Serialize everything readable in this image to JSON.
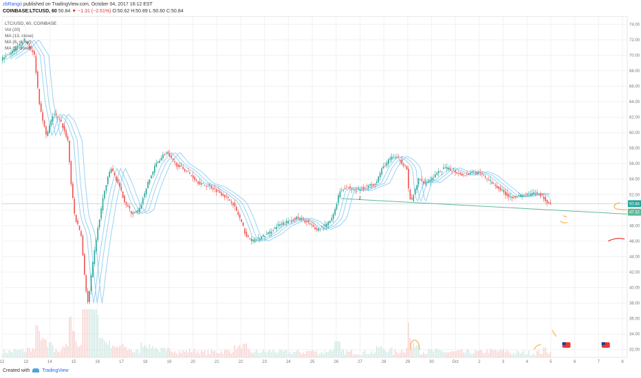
{
  "header": {
    "line1": {
      "user": "zbRango",
      "rest": "published on TradingView.com, October 04, 2017 16:12 EST"
    },
    "line2": {
      "symbol": "COINBASE:LTCUSD, 60",
      "last": "50.84",
      "change": "▼ −1.31 (−2.51%)",
      "ohlc": "O:50.62 H:50.89 L:50.60 C:50.84"
    }
  },
  "legend_items": [
    "LTC/USD, 60, COINBASE",
    "Vol (20)",
    "MA (13, close)",
    "MA (8, close)",
    "MA (5, close)"
  ],
  "footer": {
    "created": "Created with",
    "brand": "TradingView"
  },
  "price_labels": {
    "last": "50.84",
    "line": "47.32"
  },
  "annotation": "2",
  "colors": {
    "up": "#26a69a",
    "down": "#ef5350",
    "ma": "#8ecdf0",
    "trend": "#5fb89a",
    "drawing": "#f5a623",
    "drawing_red": "#e53935",
    "ohlc_red": "#d32f2f"
  },
  "icons": [
    "tradingview-logo-icon",
    "us-flag-event-icon"
  ],
  "chart_data": {
    "type": "candlestick",
    "y_range": [
      31,
      75
    ],
    "y_ticks": [
      "32.00",
      "34.00",
      "36.00",
      "38.00",
      "40.00",
      "42.00",
      "44.00",
      "46.00",
      "48.00",
      "50.00",
      "52.00",
      "54.00",
      "56.00",
      "58.00",
      "60.00",
      "62.00",
      "64.00",
      "66.00",
      "68.00",
      "70.00",
      "72.00",
      "74.00"
    ],
    "x_ticks": [
      "12",
      "13",
      "14",
      "15",
      "16",
      "17",
      "18",
      "19",
      "20",
      "21",
      "22",
      "23",
      "24",
      "25",
      "26",
      "27",
      "28",
      "29",
      "30",
      "Oct",
      "2",
      "3",
      "4",
      "5",
      "6",
      "7",
      "8"
    ],
    "x_range_days": [
      12,
      38.2
    ],
    "price_path": [
      [
        12.0,
        69.5
      ],
      [
        12.5,
        70.5
      ],
      [
        13.0,
        72.0
      ],
      [
        13.4,
        70.0
      ],
      [
        13.6,
        64.0
      ],
      [
        13.9,
        59.5
      ],
      [
        14.2,
        62.5
      ],
      [
        14.5,
        61.5
      ],
      [
        14.8,
        59.0
      ],
      [
        14.95,
        53.0
      ],
      [
        15.1,
        49.0
      ],
      [
        15.35,
        47.0
      ],
      [
        15.55,
        40.0
      ],
      [
        15.65,
        37.8
      ],
      [
        15.8,
        42.0
      ],
      [
        16.0,
        46.5
      ],
      [
        16.3,
        52.0
      ],
      [
        16.6,
        55.5
      ],
      [
        16.9,
        53.5
      ],
      [
        17.2,
        51.0
      ],
      [
        17.5,
        49.5
      ],
      [
        17.8,
        50.0
      ],
      [
        18.1,
        53.0
      ],
      [
        18.5,
        56.0
      ],
      [
        18.9,
        57.5
      ],
      [
        19.3,
        56.0
      ],
      [
        19.8,
        55.0
      ],
      [
        20.3,
        53.5
      ],
      [
        20.8,
        53.0
      ],
      [
        21.3,
        52.0
      ],
      [
        21.7,
        51.0
      ],
      [
        22.0,
        49.0
      ],
      [
        22.3,
        46.5
      ],
      [
        22.6,
        46.0
      ],
      [
        22.9,
        46.5
      ],
      [
        23.2,
        47.0
      ],
      [
        23.6,
        48.0
      ],
      [
        24.0,
        48.5
      ],
      [
        24.4,
        49.0
      ],
      [
        24.8,
        48.5
      ],
      [
        25.2,
        47.5
      ],
      [
        25.6,
        48.0
      ],
      [
        25.9,
        49.0
      ],
      [
        26.2,
        52.5
      ],
      [
        26.5,
        53.0
      ],
      [
        26.9,
        52.5
      ],
      [
        27.3,
        53.0
      ],
      [
        27.7,
        53.5
      ],
      [
        28.0,
        55.5
      ],
      [
        28.4,
        57.0
      ],
      [
        28.7,
        56.5
      ],
      [
        29.0,
        55.5
      ],
      [
        29.1,
        52.0
      ],
      [
        29.2,
        51.0
      ],
      [
        29.5,
        54.0
      ],
      [
        29.8,
        53.5
      ],
      [
        30.2,
        54.5
      ],
      [
        30.6,
        55.5
      ],
      [
        31.0,
        55.0
      ],
      [
        31.4,
        54.5
      ],
      [
        31.8,
        55.0
      ],
      [
        32.2,
        54.5
      ],
      [
        32.6,
        53.5
      ],
      [
        33.0,
        52.5
      ],
      [
        33.3,
        51.7
      ],
      [
        33.7,
        51.8
      ],
      [
        34.0,
        52.0
      ],
      [
        34.4,
        52.2
      ],
      [
        34.7,
        51.8
      ],
      [
        34.85,
        51.0
      ],
      [
        35.0,
        50.8
      ]
    ],
    "moving_averages": [
      {
        "label": "MA (13, close)",
        "lag_days": 0.55
      },
      {
        "label": "MA (8, close)",
        "lag_days": 0.35
      },
      {
        "label": "MA (5, close)",
        "lag_days": 0.2
      }
    ],
    "trendline": {
      "x": [
        26.2,
        38.2
      ],
      "y": [
        51.5,
        49.5
      ]
    },
    "horizontal_level": 50.84,
    "event_markers_days": [
      35.65,
      37.3
    ]
  }
}
